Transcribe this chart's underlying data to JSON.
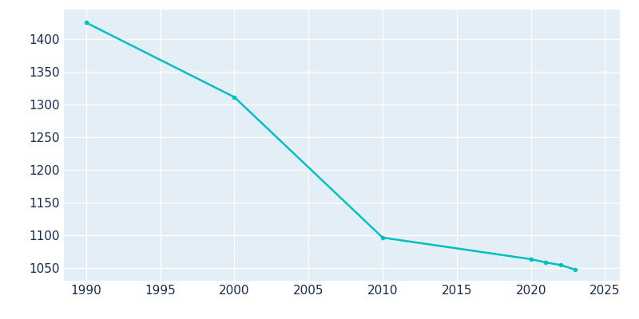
{
  "years": [
    1990,
    2000,
    2010,
    2020,
    2021,
    2022,
    2023
  ],
  "population": [
    1425,
    1311,
    1096,
    1063,
    1058,
    1054,
    1047
  ],
  "line_color": "#00BFBF",
  "background_color": "#E4EEF6",
  "fig_background": "#FFFFFF",
  "grid_color": "#FFFFFF",
  "text_color": "#1a2a4a",
  "xlim": [
    1988.5,
    2026
  ],
  "ylim": [
    1030,
    1445
  ],
  "xticks": [
    1990,
    1995,
    2000,
    2005,
    2010,
    2015,
    2020,
    2025
  ],
  "yticks": [
    1050,
    1100,
    1150,
    1200,
    1250,
    1300,
    1350,
    1400
  ],
  "line_width": 1.8,
  "marker_size": 4
}
